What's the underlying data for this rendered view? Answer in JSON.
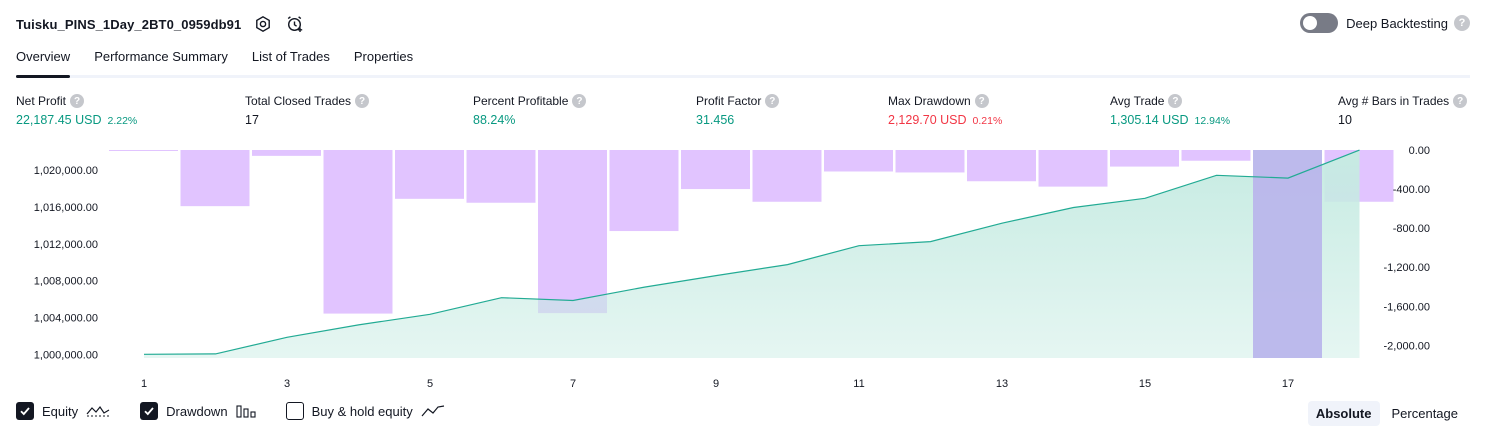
{
  "header": {
    "strategy_name": "Tuisku_PINS_1Day_2BT0_0959db91",
    "deep_backtesting_label": "Deep Backtesting",
    "help_glyph": "?"
  },
  "tabs": [
    {
      "label": "Overview",
      "active": true
    },
    {
      "label": "Performance Summary",
      "active": false
    },
    {
      "label": "List of Trades",
      "active": false
    },
    {
      "label": "Properties",
      "active": false
    }
  ],
  "stats": [
    {
      "label": "Net Profit",
      "value": "22,187.45 USD",
      "sub": "2.22%",
      "tone": "pos"
    },
    {
      "label": "Total Closed Trades",
      "value": "17",
      "sub": "",
      "tone": "neutral"
    },
    {
      "label": "Percent Profitable",
      "value": "88.24%",
      "sub": "",
      "tone": "pos"
    },
    {
      "label": "Profit Factor",
      "value": "31.456",
      "sub": "",
      "tone": "pos"
    },
    {
      "label": "Max Drawdown",
      "value": "2,129.70 USD",
      "sub": "0.21%",
      "tone": "neg"
    },
    {
      "label": "Avg Trade",
      "value": "1,305.14 USD",
      "sub": "12.94%",
      "tone": "pos"
    },
    {
      "label": "Avg # Bars in Trades",
      "value": "10",
      "sub": "",
      "tone": "neutral"
    }
  ],
  "legend": {
    "equity": {
      "label": "Equity",
      "checked": true
    },
    "drawdown": {
      "label": "Drawdown",
      "checked": true
    },
    "buy_hold": {
      "label": "Buy & hold equity",
      "checked": false
    }
  },
  "mode": {
    "absolute": "Absolute",
    "percentage": "Percentage",
    "selected": "Absolute"
  },
  "colors": {
    "equity_line": "#22ab94",
    "equity_fill": "#c6ebe2",
    "drawdown_bar": "#e1c4ff",
    "last_drawdown_bar": "#b9b6eb",
    "positive": "#089981",
    "negative": "#f23645"
  },
  "chart_data": {
    "type": "line",
    "x": [
      1,
      2,
      3,
      4,
      5,
      6,
      7,
      8,
      9,
      10,
      11,
      12,
      13,
      14,
      15,
      16,
      17,
      18
    ],
    "x_tick_labels": [
      "1",
      "3",
      "5",
      "7",
      "9",
      "11",
      "13",
      "15",
      "17"
    ],
    "series": [
      {
        "axis": "left",
        "kind": "area-line",
        "values": [
          1000000,
          1000050,
          1001850,
          1003200,
          1004350,
          1006150,
          1005850,
          1007300,
          1008550,
          1009750,
          1011800,
          1012250,
          1014250,
          1015950,
          1016950,
          1019450,
          1019150,
          1022187.45
        ]
      },
      {
        "axis": "right",
        "kind": "bar",
        "values": [
          0,
          -575,
          -60,
          -1675,
          -500,
          -540,
          -1670,
          -830,
          -400,
          -530,
          -220,
          -230,
          -320,
          -375,
          -170,
          -110,
          -2129.7,
          -530
        ]
      }
    ],
    "left_axis": {
      "ticks": [
        "1,000,000.00",
        "1,004,000.00",
        "1,008,000.00",
        "1,012,000.00",
        "1,016,000.00",
        "1,020,000.00"
      ],
      "range": [
        999600,
        1022200
      ]
    },
    "right_axis": {
      "ticks": [
        "0.00",
        "-400.00",
        "-800.00",
        "-1,200.00",
        "-1,600.00",
        "-2,000.00"
      ],
      "range": [
        -2129.7,
        0
      ]
    },
    "grid": false
  }
}
